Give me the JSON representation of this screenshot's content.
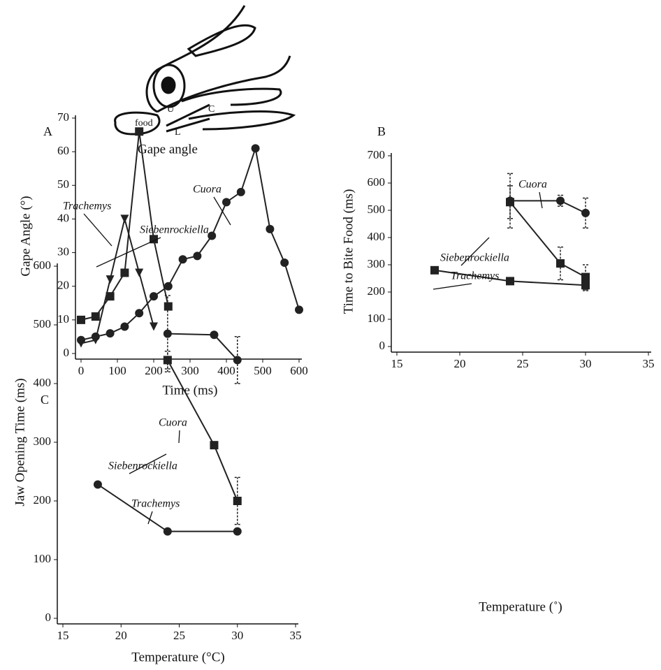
{
  "diagram": {
    "labels": [
      "U",
      "C",
      "L",
      "food"
    ],
    "caption": "Gape angle"
  },
  "chart_data": [
    {
      "type": "line",
      "label": "A",
      "x_label": "Time (ms)",
      "y_label": "Gape Angle (°)",
      "xlim": [
        0,
        600
      ],
      "xticks": [
        0,
        100,
        200,
        300,
        400,
        500,
        600
      ],
      "ylim": [
        0,
        70
      ],
      "yticks": [
        0,
        10,
        20,
        30,
        40,
        50,
        60,
        70
      ],
      "grid": false,
      "series": [
        {
          "name": "Trachemys",
          "color": "#222",
          "marker": "square",
          "x": [
            0,
            40,
            80,
            120,
            160,
            200,
            240
          ],
          "values": [
            10,
            11,
            17,
            24,
            66,
            34,
            14
          ]
        },
        {
          "name": "Siebenrockiella",
          "color": "#222",
          "marker": "triangle",
          "x": [
            0,
            40,
            80,
            120,
            160,
            200
          ],
          "values": [
            3,
            4,
            22,
            40,
            24,
            8
          ]
        },
        {
          "name": "Cuora",
          "color": "#222",
          "marker": "circle",
          "x": [
            0,
            40,
            80,
            120,
            160,
            200,
            240,
            280,
            320,
            360,
            400,
            440,
            480,
            520,
            560,
            600
          ],
          "values": [
            4,
            5,
            6,
            8,
            12,
            17,
            20,
            28,
            29,
            35,
            45,
            48,
            61,
            37,
            27,
            13
          ]
        }
      ]
    },
    {
      "type": "line",
      "label": "B",
      "x_label": "Temperature (˚)",
      "y_label": "Time to Bite Food (ms)",
      "xlim": [
        15,
        35
      ],
      "xticks": [
        15,
        20,
        25,
        30,
        35
      ],
      "ylim": [
        0,
        700
      ],
      "yticks": [
        0,
        100,
        200,
        300,
        400,
        500,
        600,
        700
      ],
      "grid": false,
      "series": [
        {
          "name": "Cuora",
          "color": "#222",
          "marker": "circle",
          "x": [
            24,
            28,
            30
          ],
          "values": [
            535,
            535,
            490
          ],
          "errors": [
            100,
            20,
            55
          ]
        },
        {
          "name": "Siebenrockiella",
          "color": "#222",
          "marker": "square",
          "x": [
            24,
            28,
            30
          ],
          "values": [
            530,
            305,
            255
          ],
          "errors": [
            60,
            60,
            45
          ]
        },
        {
          "name": "Trachemys",
          "color": "#222",
          "marker": "square",
          "x": [
            18,
            24,
            30
          ],
          "values": [
            280,
            240,
            225
          ],
          "errors": [
            null,
            null,
            20
          ]
        }
      ]
    },
    {
      "type": "line",
      "label": "C",
      "x_label": "Temperature (°C)",
      "y_label": "Jaw Opening Time (ms)",
      "xlim": [
        15,
        35
      ],
      "xticks": [
        15,
        20,
        25,
        30,
        35
      ],
      "ylim": [
        0,
        600
      ],
      "yticks": [
        0,
        100,
        200,
        300,
        400,
        500,
        600
      ],
      "grid": false,
      "series": [
        {
          "name": "Cuora",
          "color": "#222",
          "marker": "circle",
          "x": [
            24,
            28,
            30
          ],
          "values": [
            485,
            483,
            440
          ],
          "errors": [
            65,
            null,
            40
          ]
        },
        {
          "name": "Siebenrockiella",
          "color": "#222",
          "marker": "square",
          "x": [
            24,
            28,
            30
          ],
          "values": [
            440,
            295,
            200
          ],
          "errors": [
            15,
            null,
            40
          ]
        },
        {
          "name": "Trachemys",
          "color": "#222",
          "marker": "circle",
          "x": [
            18,
            24,
            30
          ],
          "values": [
            228,
            148,
            148
          ],
          "errors": [
            null,
            null,
            null
          ]
        }
      ]
    }
  ]
}
